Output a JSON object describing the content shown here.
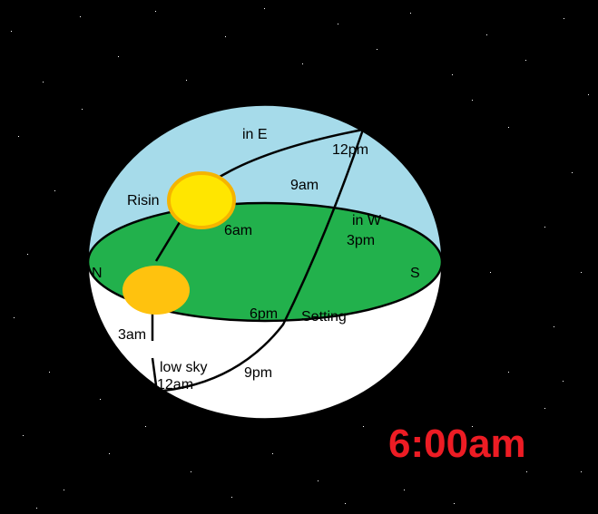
{
  "labels": {
    "north": "N",
    "south": "S",
    "in_east": "in E",
    "rising_partial": "Risin",
    "in_west": "in W",
    "setting": "Setting",
    "low_sky": "low sky"
  },
  "hours": {
    "h12pm": "12pm",
    "h9am": "9am",
    "h6am": "6am",
    "h3pm": "3pm",
    "h6pm": "6pm",
    "h3am": "3am",
    "h9pm": "9pm",
    "h12am": "12am"
  },
  "clock": {
    "time": "6:00am"
  },
  "colors": {
    "background": "#000000",
    "sky": "#a6dbea",
    "below_horizon": "#ffffff",
    "ground": "#22b14c",
    "sun_now": "#ffe600",
    "sun_now_rim": "#f5b400",
    "sun_prev": "#ffc20e",
    "clock_text": "#ed1c24"
  }
}
